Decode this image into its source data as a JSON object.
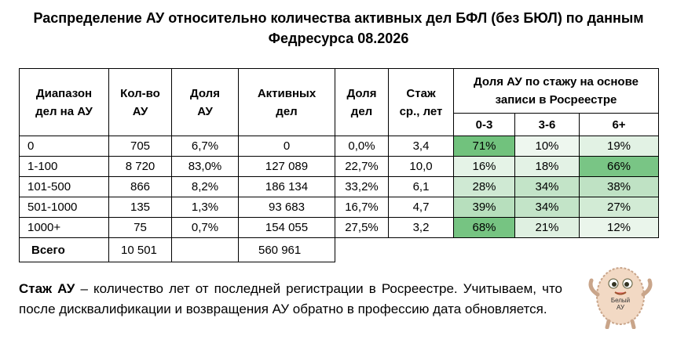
{
  "title": "Распределение АУ относительно количества активных дел БФЛ (без БЮЛ) по данным Федресурса 08.2026",
  "table": {
    "headers": [
      "Диапазон\nдел на АУ",
      "Кол-во\nАУ",
      "Доля\nАУ",
      "Активных\nдел",
      "Доля\nдел",
      "Стаж\nср., лет"
    ],
    "group_header": "Доля АУ по стажу на основе\nзаписи в Росреестре",
    "subheaders": [
      "0-3",
      "3-6",
      "6+"
    ],
    "rows": [
      [
        "0",
        "705",
        "6,7%",
        "0",
        "0,0%",
        "3,4",
        "71%",
        "10%",
        "19%"
      ],
      [
        "1-100",
        "8 720",
        "83,0%",
        "127 089",
        "22,7%",
        "10,0",
        "16%",
        "18%",
        "66%"
      ],
      [
        "101-500",
        "866",
        "8,2%",
        "186 134",
        "33,2%",
        "6,1",
        "28%",
        "34%",
        "38%"
      ],
      [
        "501-1000",
        "135",
        "1,3%",
        "93 683",
        "16,7%",
        "4,7",
        "39%",
        "34%",
        "27%"
      ],
      [
        "1000+",
        "75",
        "0,7%",
        "154 055",
        "27,5%",
        "3,2",
        "68%",
        "21%",
        "12%"
      ]
    ],
    "heat_colors": [
      [
        "#71c27d",
        "#eef7ef",
        "#e2f2e4"
      ],
      [
        "#e5f3e7",
        "#e3f2e5",
        "#79c585"
      ],
      [
        "#cfe9d3",
        "#c3e4c8",
        "#bfe2c4"
      ],
      [
        "#b7dfbd",
        "#c3e4c8",
        "#d2ebd5"
      ],
      [
        "#76c482",
        "#dff0e1",
        "#eaf5eb"
      ]
    ],
    "total": [
      "Всего",
      "10 501",
      "560 961"
    ]
  },
  "note": {
    "term": "Стаж АУ",
    "text": "– количество лет от последней регистрации в Росреестре. Учитываем, что после дисквалификации и возвращения АУ обратно в профессию дата обновляется."
  },
  "mascot": {
    "label": "Белый\nАУ"
  }
}
